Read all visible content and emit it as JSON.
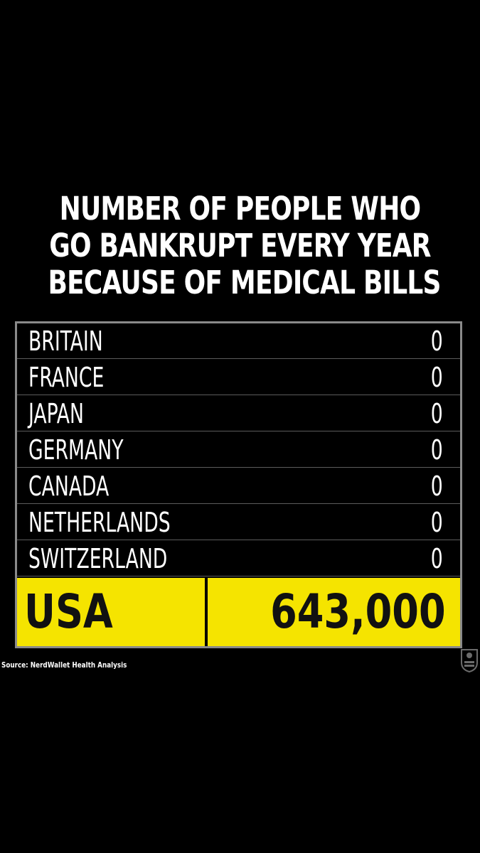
{
  "chart_data": {
    "type": "table",
    "title_lines": [
      "NUMBER OF PEOPLE WHO",
      "GO BANKRUPT EVERY YEAR",
      "BECAUSE OF MEDICAL BILLS"
    ],
    "rows": [
      {
        "country": "BRITAIN",
        "value": "0"
      },
      {
        "country": "FRANCE",
        "value": "0"
      },
      {
        "country": "JAPAN",
        "value": "0"
      },
      {
        "country": "GERMANY",
        "value": "0"
      },
      {
        "country": "CANADA",
        "value": "0"
      },
      {
        "country": "NETHERLANDS",
        "value": "0"
      },
      {
        "country": "SWITZERLAND",
        "value": "0"
      }
    ],
    "highlight": {
      "country": "USA",
      "value": "643,000"
    },
    "source": "Source: NerdWallet Health Analysis"
  },
  "colors": {
    "background": "#000000",
    "highlight": "#f5e400",
    "text": "#ffffff",
    "border": "#8a8a8a"
  },
  "watermark": {
    "icon": "seal-logo-icon"
  }
}
